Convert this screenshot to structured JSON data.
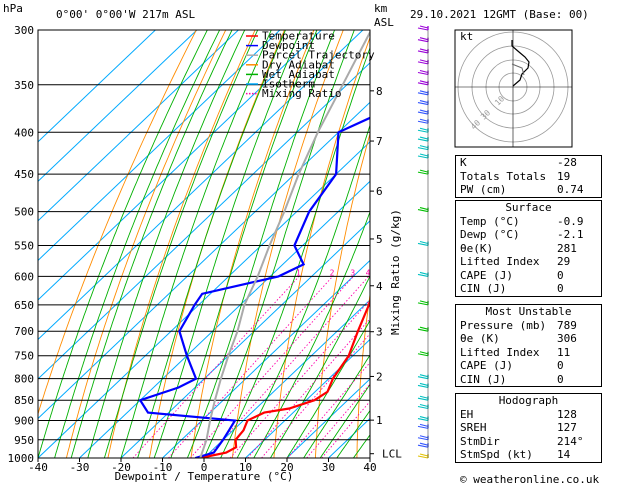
{
  "header": {
    "units_hpa": "hPa",
    "location": "0°00' 0°00'W 217m ASL",
    "units_km": "km",
    "units_asl": "ASL",
    "datetime": "29.10.2021 12GMT (Base: 00)"
  },
  "legend": [
    {
      "label": "Temperature",
      "color": "#ff0000",
      "style": "solid"
    },
    {
      "label": "Dewpoint",
      "color": "#0000ff",
      "style": "solid"
    },
    {
      "label": "Parcel Trajectory",
      "color": "#aaaaaa",
      "style": "solid"
    },
    {
      "label": "Dry Adiabat",
      "color": "#ff8c00",
      "style": "solid"
    },
    {
      "label": "Wet Adiabat",
      "color": "#00b000",
      "style": "solid"
    },
    {
      "label": "Isotherm",
      "color": "#00aaff",
      "style": "solid"
    },
    {
      "label": "Mixing Ratio",
      "color": "#ff00aa",
      "style": "dotted"
    }
  ],
  "chart_data": {
    "type": "line",
    "xlabel": "Dewpoint / Temperature (°C)",
    "ylabel_right": "Mixing Ratio (g/kg)",
    "ylabel_left": "hPa",
    "x_range": [
      -40,
      40
    ],
    "x_ticks": [
      "-40",
      "-30",
      "-20",
      "-10",
      "0",
      "10",
      "20",
      "30",
      "40"
    ],
    "pressure_ticks": [
      "300",
      "350",
      "400",
      "450",
      "500",
      "550",
      "600",
      "650",
      "700",
      "750",
      "800",
      "850",
      "900",
      "950",
      "1000"
    ],
    "km_ticks": [
      "8",
      "7",
      "6",
      "5",
      "4",
      "3",
      "2",
      "1",
      "LCL"
    ],
    "mixing_ratio_labels": [
      "1",
      "2",
      "3",
      "4",
      "6",
      "8",
      "10",
      "15",
      "20",
      "25"
    ],
    "series": [
      {
        "name": "Temperature",
        "color": "#ff0000",
        "points": [
          [
            1000,
            -0.9
          ],
          [
            985,
            4
          ],
          [
            970,
            5
          ],
          [
            950,
            3
          ],
          [
            925,
            2.5
          ],
          [
            900,
            1
          ],
          [
            880,
            3
          ],
          [
            870,
            8
          ],
          [
            850,
            12
          ],
          [
            830,
            13
          ],
          [
            800,
            11
          ],
          [
            750,
            9
          ],
          [
            700,
            5
          ],
          [
            650,
            1
          ],
          [
            600,
            -4
          ],
          [
            550,
            -8
          ],
          [
            500,
            -14
          ],
          [
            450,
            -20
          ],
          [
            400,
            -27
          ],
          [
            350,
            -34
          ],
          [
            300,
            -41
          ]
        ]
      },
      {
        "name": "Dewpoint",
        "color": "#0000ff",
        "points": [
          [
            1000,
            -2.1
          ],
          [
            985,
            1
          ],
          [
            950,
            0
          ],
          [
            925,
            -1
          ],
          [
            900,
            -2
          ],
          [
            880,
            -25
          ],
          [
            850,
            -30
          ],
          [
            820,
            -24
          ],
          [
            800,
            -22
          ],
          [
            750,
            -30
          ],
          [
            700,
            -38
          ],
          [
            650,
            -41
          ],
          [
            630,
            -42
          ],
          [
            600,
            -28
          ],
          [
            580,
            -25
          ],
          [
            550,
            -32
          ],
          [
            500,
            -37
          ],
          [
            450,
            -40
          ],
          [
            400,
            -50
          ],
          [
            380,
            -45
          ],
          [
            350,
            -47
          ],
          [
            330,
            -55
          ],
          [
            300,
            -60
          ]
        ]
      },
      {
        "name": "Parcel Trajectory",
        "color": "#aaaaaa",
        "points": [
          [
            1000,
            -0.9
          ],
          [
            950,
            -4
          ],
          [
            900,
            -8
          ],
          [
            850,
            -12
          ],
          [
            800,
            -16
          ],
          [
            750,
            -20
          ],
          [
            700,
            -24
          ],
          [
            650,
            -29
          ],
          [
            600,
            -33
          ],
          [
            550,
            -38
          ],
          [
            500,
            -43
          ],
          [
            450,
            -49
          ],
          [
            400,
            -55
          ],
          [
            350,
            -61
          ],
          [
            300,
            -68
          ]
        ]
      }
    ]
  },
  "wind_barbs_label": "wind barbs",
  "hodograph": {
    "label": "kt",
    "ring_labels": [
      "40",
      "30",
      "10"
    ]
  },
  "indices": [
    {
      "k": "K",
      "v": "-28"
    },
    {
      "k": "Totals Totals",
      "v": "19"
    },
    {
      "k": "PW (cm)",
      "v": "0.74"
    }
  ],
  "surface": {
    "title": "Surface",
    "rows": [
      {
        "k": "Temp (°C)",
        "v": "-0.9"
      },
      {
        "k": "Dewp (°C)",
        "v": "-2.1"
      },
      {
        "k": "θe(K)",
        "v": "281"
      },
      {
        "k": "Lifted Index",
        "v": "29"
      },
      {
        "k": "CAPE (J)",
        "v": "0"
      },
      {
        "k": "CIN (J)",
        "v": "0"
      }
    ]
  },
  "most_unstable": {
    "title": "Most Unstable",
    "rows": [
      {
        "k": "Pressure (mb)",
        "v": "789"
      },
      {
        "k": "θe (K)",
        "v": "306"
      },
      {
        "k": "Lifted Index",
        "v": "11"
      },
      {
        "k": "CAPE (J)",
        "v": "0"
      },
      {
        "k": "CIN (J)",
        "v": "0"
      }
    ]
  },
  "hodograph_table": {
    "title": "Hodograph",
    "rows": [
      {
        "k": "EH",
        "v": "128"
      },
      {
        "k": "SREH",
        "v": "127"
      },
      {
        "k": "StmDir",
        "v": "214°"
      },
      {
        "k": "StmSpd (kt)",
        "v": "14"
      }
    ]
  },
  "footer": "© weatheronline.co.uk"
}
